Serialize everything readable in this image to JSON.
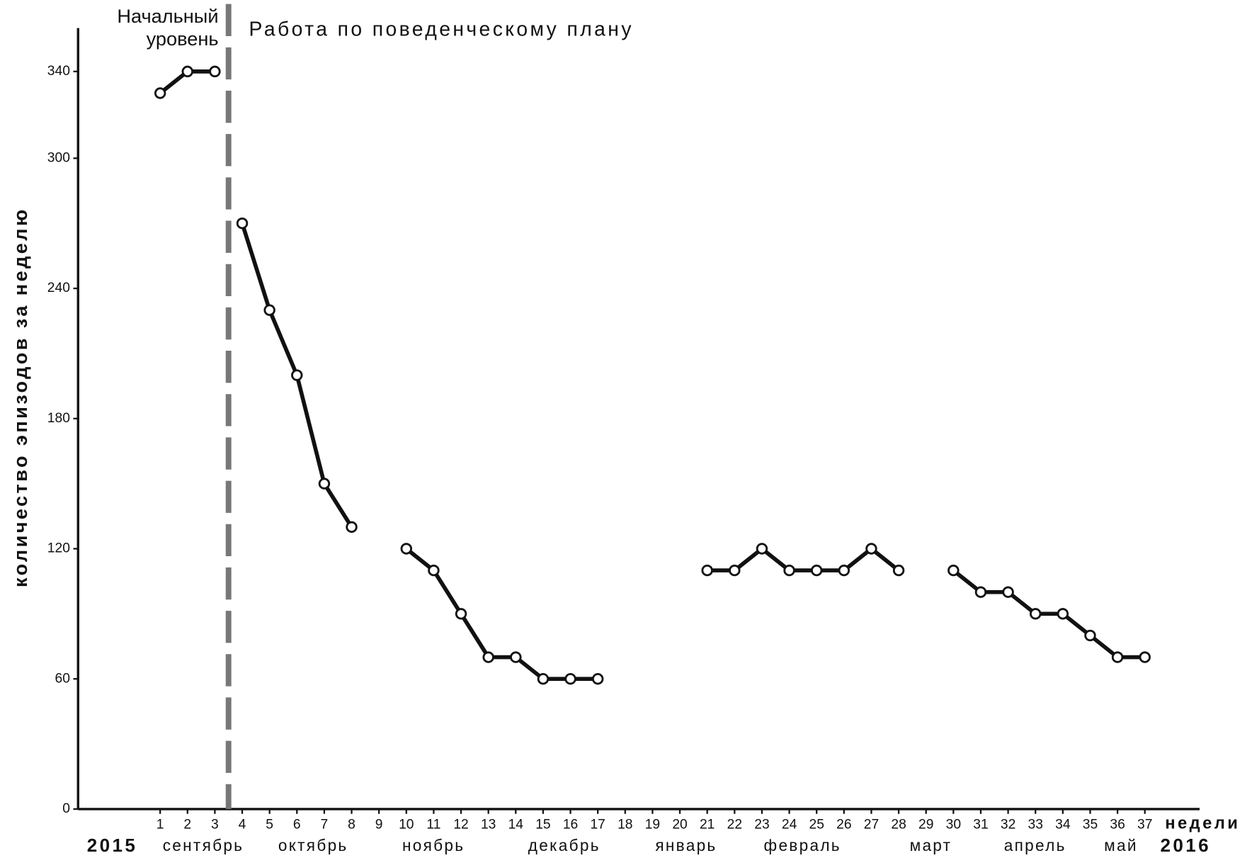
{
  "chart_data": {
    "type": "line",
    "title": "Работа по поведенческому плану",
    "phase_label": [
      "Начальный",
      "уровень"
    ],
    "ylabel": "количество эпизодов за неделю",
    "xlabel": "недели",
    "start_year": "2015",
    "end_year": "2016",
    "months": [
      "сентябрь",
      "октябрь",
      "ноябрь",
      "декабрь",
      "январь",
      "февраль",
      "март",
      "апрель",
      "май"
    ],
    "phase_change": 3.5,
    "xlim": [
      -2,
      39
    ],
    "ylim": [
      0,
      360
    ],
    "xticks": [
      1,
      2,
      3,
      4,
      5,
      6,
      7,
      8,
      9,
      10,
      11,
      12,
      13,
      14,
      15,
      16,
      17,
      18,
      19,
      20,
      21,
      22,
      23,
      24,
      25,
      26,
      27,
      28,
      29,
      30,
      31,
      32,
      33,
      34,
      35,
      36,
      37
    ],
    "yticks": [
      0,
      60,
      120,
      180,
      240,
      300,
      340
    ],
    "color": "#111111",
    "series": [
      {
        "x": [
          1,
          2,
          3
        ],
        "values": [
          330,
          340,
          340
        ]
      },
      {
        "x": [
          4,
          5,
          6,
          7,
          8,
          9,
          10,
          11,
          12,
          13,
          14,
          15,
          16,
          17,
          18,
          19,
          20,
          21,
          22,
          23,
          24,
          25,
          26,
          27,
          28,
          29,
          30,
          31,
          32,
          33,
          34,
          35,
          36,
          37
        ],
        "values": [
          270,
          230,
          200,
          150,
          130,
          null,
          120,
          110,
          90,
          70,
          70,
          60,
          60,
          60,
          null,
          null,
          null,
          110,
          110,
          120,
          110,
          110,
          110,
          120,
          110,
          null,
          110,
          100,
          100,
          90,
          90,
          80,
          70,
          70
        ]
      }
    ]
  }
}
